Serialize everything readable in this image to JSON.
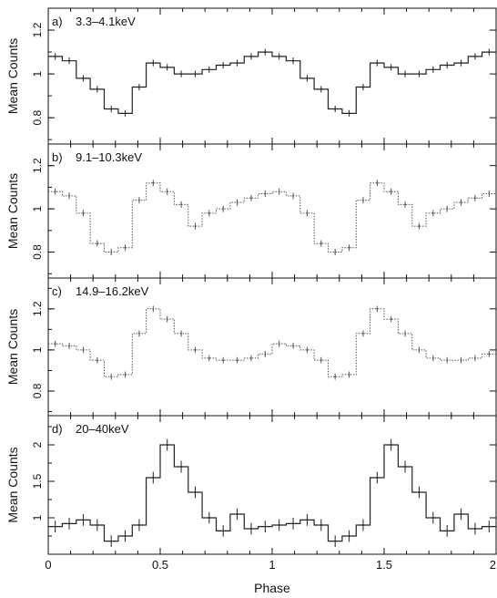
{
  "figure": {
    "xlabel": "Phase",
    "x_ticks": [
      "0",
      "0.5",
      "1",
      "1.5",
      "2"
    ],
    "x_tick_values": [
      0,
      0.5,
      1,
      1.5,
      2
    ],
    "line_color": "#222222",
    "axis_color": "#111111"
  },
  "chart_data": [
    {
      "type": "line",
      "panel_label": "a)",
      "title": "3.3–4.1keV",
      "xlabel": "",
      "ylabel": "Mean Counts",
      "xlim": [
        0,
        2
      ],
      "ylim": [
        0.68,
        1.3
      ],
      "yticks": [
        0.8,
        1,
        1.2
      ],
      "ytick_labels": [
        "0.8",
        "1",
        "1.2"
      ],
      "style": "step-with-errorbars",
      "series": [
        {
          "x": [
            0.0,
            0.0625,
            0.125,
            0.1875,
            0.25,
            0.3125,
            0.375,
            0.4375,
            0.5,
            0.5625,
            0.625,
            0.6875,
            0.75,
            0.8125,
            0.875,
            0.9375,
            1.0,
            1.0625,
            1.125,
            1.1875,
            1.25,
            1.3125,
            1.375,
            1.4375,
            1.5,
            1.5625,
            1.625,
            1.6875,
            1.75,
            1.8125,
            1.875,
            1.9375
          ],
          "values": [
            1.08,
            1.06,
            0.98,
            0.93,
            0.84,
            0.82,
            0.94,
            1.05,
            1.03,
            1.0,
            1.0,
            1.02,
            1.04,
            1.05,
            1.08,
            1.1,
            1.08,
            1.06,
            0.98,
            0.93,
            0.84,
            0.82,
            0.94,
            1.05,
            1.03,
            1.0,
            1.0,
            1.02,
            1.04,
            1.05,
            1.08,
            1.1
          ]
        }
      ]
    },
    {
      "type": "line",
      "panel_label": "b)",
      "title": "9.1–10.3keV",
      "xlabel": "",
      "ylabel": "Mean Counts",
      "xlim": [
        0,
        2
      ],
      "ylim": [
        0.68,
        1.3
      ],
      "yticks": [
        0.8,
        1,
        1.2
      ],
      "ytick_labels": [
        "0.8",
        "1",
        "1.2"
      ],
      "style": "step-with-errorbars",
      "series": [
        {
          "x": [
            0.0,
            0.0625,
            0.125,
            0.1875,
            0.25,
            0.3125,
            0.375,
            0.4375,
            0.5,
            0.5625,
            0.625,
            0.6875,
            0.75,
            0.8125,
            0.875,
            0.9375,
            1.0,
            1.0625,
            1.125,
            1.1875,
            1.25,
            1.3125,
            1.375,
            1.4375,
            1.5,
            1.5625,
            1.625,
            1.6875,
            1.75,
            1.8125,
            1.875,
            1.9375
          ],
          "values": [
            1.08,
            1.06,
            0.98,
            0.84,
            0.8,
            0.82,
            1.04,
            1.12,
            1.08,
            1.02,
            0.92,
            0.98,
            1.0,
            1.03,
            1.05,
            1.07,
            1.08,
            1.06,
            0.98,
            0.84,
            0.8,
            0.82,
            1.04,
            1.12,
            1.08,
            1.02,
            0.92,
            0.98,
            1.0,
            1.03,
            1.05,
            1.07
          ]
        }
      ]
    },
    {
      "type": "line",
      "panel_label": "c)",
      "title": "14.9–16.2keV",
      "xlabel": "",
      "ylabel": "Mean Counts",
      "xlim": [
        0,
        2
      ],
      "ylim": [
        0.68,
        1.35
      ],
      "yticks": [
        0.8,
        1,
        1.2
      ],
      "ytick_labels": [
        "0.8",
        "1",
        "1.2"
      ],
      "style": "step-with-errorbars",
      "series": [
        {
          "x": [
            0.0,
            0.0625,
            0.125,
            0.1875,
            0.25,
            0.3125,
            0.375,
            0.4375,
            0.5,
            0.5625,
            0.625,
            0.6875,
            0.75,
            0.8125,
            0.875,
            0.9375,
            1.0,
            1.0625,
            1.125,
            1.1875,
            1.25,
            1.3125,
            1.375,
            1.4375,
            1.5,
            1.5625,
            1.625,
            1.6875,
            1.75,
            1.8125,
            1.875,
            1.9375
          ],
          "values": [
            1.03,
            1.02,
            1.0,
            0.95,
            0.87,
            0.88,
            1.08,
            1.2,
            1.15,
            1.08,
            1.0,
            0.96,
            0.95,
            0.95,
            0.96,
            0.98,
            1.03,
            1.02,
            1.0,
            0.95,
            0.87,
            0.88,
            1.08,
            1.2,
            1.15,
            1.08,
            1.0,
            0.96,
            0.95,
            0.95,
            0.96,
            0.98
          ]
        }
      ]
    },
    {
      "type": "line",
      "panel_label": "d)",
      "title": "20–40keV",
      "xlabel": "Phase",
      "ylabel": "Mean Counts",
      "xlim": [
        0,
        2
      ],
      "ylim": [
        0.5,
        2.4
      ],
      "yticks": [
        1,
        1.5,
        2
      ],
      "ytick_labels": [
        "1",
        "1.5",
        "2"
      ],
      "style": "step-with-errorbars",
      "series": [
        {
          "x": [
            0.0,
            0.0625,
            0.125,
            0.1875,
            0.25,
            0.3125,
            0.375,
            0.4375,
            0.5,
            0.5625,
            0.625,
            0.6875,
            0.75,
            0.8125,
            0.875,
            0.9375,
            1.0,
            1.0625,
            1.125,
            1.1875,
            1.25,
            1.3125,
            1.375,
            1.4375,
            1.5,
            1.5625,
            1.625,
            1.6875,
            1.75,
            1.8125,
            1.875,
            1.9375
          ],
          "values": [
            0.88,
            0.92,
            0.97,
            0.9,
            0.68,
            0.75,
            0.9,
            1.55,
            2.0,
            1.7,
            1.35,
            1.0,
            0.82,
            1.05,
            0.85,
            0.88,
            0.9,
            0.92,
            0.97,
            0.9,
            0.68,
            0.75,
            0.9,
            1.55,
            2.0,
            1.7,
            1.35,
            1.0,
            0.82,
            1.05,
            0.85,
            0.88
          ]
        }
      ]
    }
  ]
}
